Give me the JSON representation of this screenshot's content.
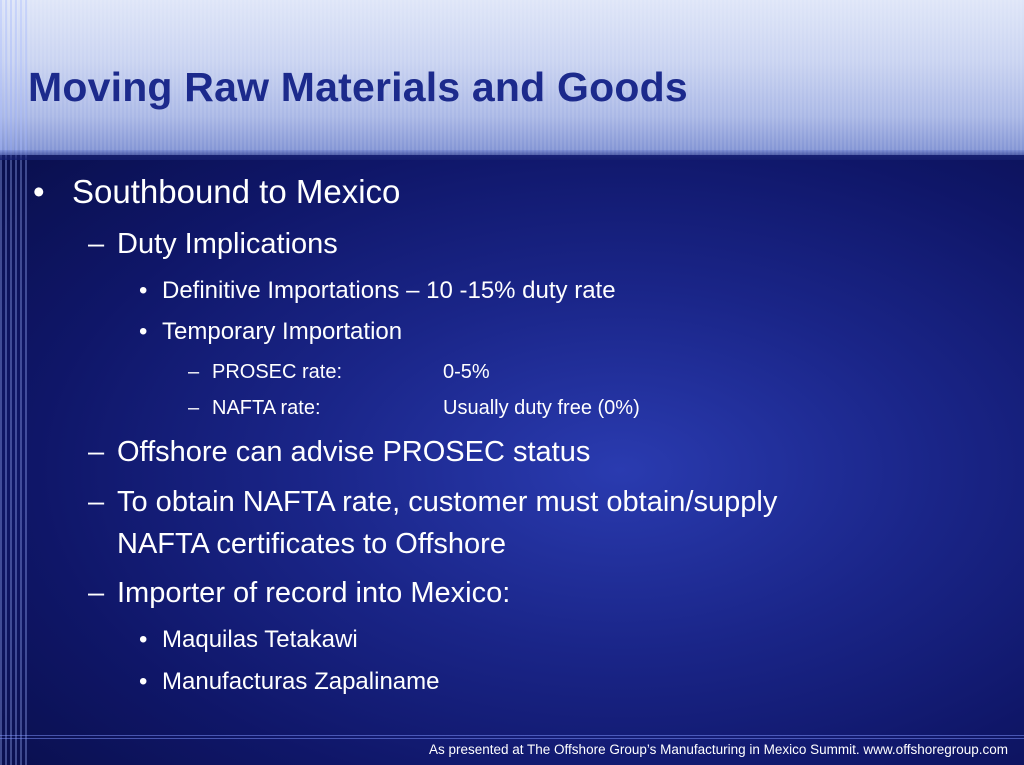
{
  "slide": {
    "title": "Moving Raw Materials and Goods",
    "bullets": {
      "southbound": "Southbound to Mexico",
      "duty_implications": "Duty Implications",
      "definitive": "Definitive Importations – 10 -15% duty rate",
      "temporary": "Temporary Importation",
      "prosec_label": "PROSEC rate:",
      "prosec_value": "0-5%",
      "nafta_label": "NAFTA rate:",
      "nafta_value": "Usually duty free (0%)",
      "offshore_advise": "Offshore can advise PROSEC status",
      "obtain_line1": "To obtain NAFTA rate, customer must obtain/supply",
      "obtain_line2": "NAFTA certificates to Offshore",
      "importer": "Importer of record into Mexico:",
      "maquilas": "Maquilas Tetakawi",
      "manufacturas": "Manufacturas Zapaliname"
    },
    "markers": {
      "bullet": "•",
      "dash": "–"
    },
    "footer": "As presented at The Offshore Group’s Manufacturing in Mexico Summit. www.offshoregroup.com"
  },
  "colors": {
    "title": "#1c2a8c",
    "text": "#ffffff",
    "background": "#0b1250"
  }
}
